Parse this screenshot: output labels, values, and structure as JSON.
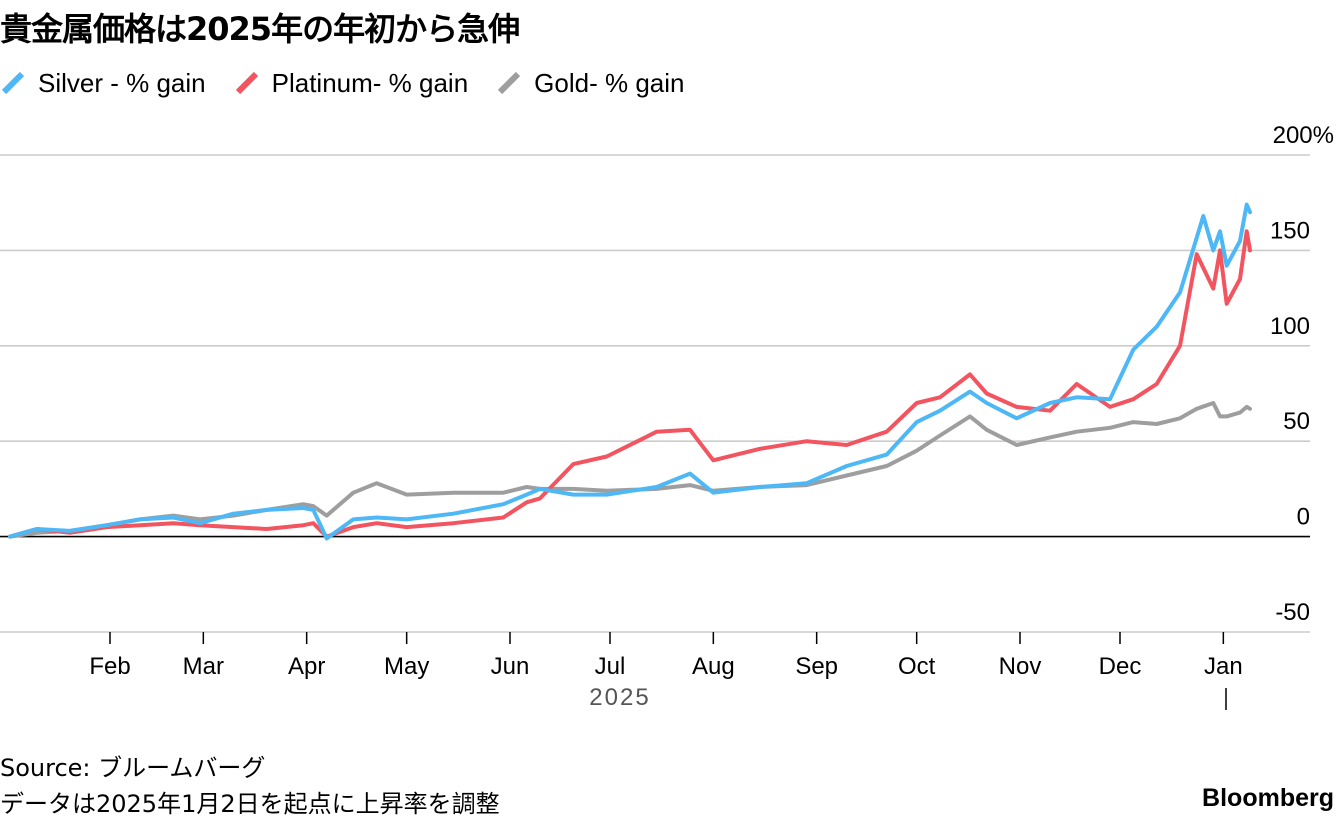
{
  "header": {
    "title": "貴金属価格は2025年の年初から急伸"
  },
  "footer": {
    "source": "Source: ブルームバーグ",
    "note": "データは2025年1月2日を起点に上昇率を調整",
    "brand": "Bloomberg"
  },
  "colors": {
    "silver": "#4db8f5",
    "platinum": "#f2555f",
    "gold": "#9e9e9e",
    "grid": "#cccccc",
    "zero_line": "#000000"
  },
  "chart_data": {
    "type": "line",
    "title": "貴金属価格は2025年の年初から急伸",
    "ylim": [
      -50,
      200
    ],
    "y_ticks": [
      -50,
      0,
      50,
      100,
      150,
      200
    ],
    "y_tick_labels": [
      "-50",
      "0",
      "50",
      "100",
      "150",
      "200%"
    ],
    "x_range": [
      "2025-01-02",
      "2026-01-09"
    ],
    "x_ticks": [
      {
        "date": "2025-02-01",
        "label": "Feb"
      },
      {
        "date": "2025-03-01",
        "label": "Mar"
      },
      {
        "date": "2025-04-01",
        "label": "Apr"
      },
      {
        "date": "2025-05-01",
        "label": "May"
      },
      {
        "date": "2025-06-01",
        "label": "Jun"
      },
      {
        "date": "2025-07-01",
        "label": "Jul"
      },
      {
        "date": "2025-08-01",
        "label": "Aug"
      },
      {
        "date": "2025-09-01",
        "label": "Sep"
      },
      {
        "date": "2025-10-01",
        "label": "Oct"
      },
      {
        "date": "2025-11-01",
        "label": "Nov"
      },
      {
        "date": "2025-12-01",
        "label": "Dec"
      },
      {
        "date": "2026-01-01",
        "label": "Jan"
      }
    ],
    "year_label": "2025",
    "legend_position": "top-left",
    "grid": true,
    "series": [
      {
        "name": "Silver - % gain",
        "color": "#4db8f5",
        "x": [
          "2025-01-02",
          "2025-01-10",
          "2025-01-20",
          "2025-01-31",
          "2025-02-10",
          "2025-02-20",
          "2025-02-28",
          "2025-03-10",
          "2025-03-20",
          "2025-03-31",
          "2025-04-03",
          "2025-04-07",
          "2025-04-15",
          "2025-04-22",
          "2025-05-01",
          "2025-05-15",
          "2025-05-30",
          "2025-06-06",
          "2025-06-10",
          "2025-06-20",
          "2025-06-30",
          "2025-07-15",
          "2025-07-25",
          "2025-08-01",
          "2025-08-15",
          "2025-08-29",
          "2025-09-10",
          "2025-09-22",
          "2025-10-01",
          "2025-10-08",
          "2025-10-17",
          "2025-10-22",
          "2025-10-31",
          "2025-11-10",
          "2025-11-18",
          "2025-11-28",
          "2025-12-05",
          "2025-12-12",
          "2025-12-19",
          "2025-12-26",
          "2025-12-29",
          "2025-12-31",
          "2026-01-02",
          "2026-01-06",
          "2026-01-08",
          "2026-01-09"
        ],
        "values": [
          0,
          4,
          3,
          6,
          9,
          10,
          7,
          12,
          14,
          15,
          14,
          -1,
          9,
          10,
          9,
          12,
          17,
          22,
          25,
          22,
          22,
          26,
          33,
          23,
          26,
          28,
          37,
          43,
          60,
          66,
          76,
          70,
          62,
          70,
          73,
          72,
          98,
          110,
          128,
          168,
          150,
          160,
          142,
          155,
          174,
          170
        ]
      },
      {
        "name": "Platinum- % gain",
        "color": "#f2555f",
        "x": [
          "2025-01-02",
          "2025-01-10",
          "2025-01-20",
          "2025-01-31",
          "2025-02-10",
          "2025-02-20",
          "2025-02-28",
          "2025-03-10",
          "2025-03-20",
          "2025-03-31",
          "2025-04-03",
          "2025-04-07",
          "2025-04-15",
          "2025-04-22",
          "2025-05-01",
          "2025-05-15",
          "2025-05-30",
          "2025-06-06",
          "2025-06-10",
          "2025-06-20",
          "2025-06-30",
          "2025-07-15",
          "2025-07-25",
          "2025-08-01",
          "2025-08-15",
          "2025-08-29",
          "2025-09-10",
          "2025-09-22",
          "2025-10-01",
          "2025-10-08",
          "2025-10-17",
          "2025-10-22",
          "2025-10-31",
          "2025-11-10",
          "2025-11-18",
          "2025-11-28",
          "2025-12-05",
          "2025-12-12",
          "2025-12-19",
          "2025-12-24",
          "2025-12-29",
          "2025-12-31",
          "2026-01-02",
          "2026-01-06",
          "2026-01-08",
          "2026-01-09"
        ],
        "values": [
          0,
          4,
          2,
          5,
          6,
          7,
          6,
          5,
          4,
          6,
          7,
          0,
          5,
          7,
          5,
          7,
          10,
          18,
          20,
          38,
          42,
          55,
          56,
          40,
          46,
          50,
          48,
          55,
          70,
          73,
          85,
          75,
          68,
          66,
          80,
          68,
          72,
          80,
          100,
          148,
          130,
          150,
          122,
          135,
          160,
          150
        ]
      },
      {
        "name": "Gold- % gain",
        "color": "#9e9e9e",
        "x": [
          "2025-01-02",
          "2025-01-10",
          "2025-01-20",
          "2025-01-31",
          "2025-02-10",
          "2025-02-20",
          "2025-02-28",
          "2025-03-10",
          "2025-03-20",
          "2025-03-31",
          "2025-04-03",
          "2025-04-07",
          "2025-04-15",
          "2025-04-22",
          "2025-05-01",
          "2025-05-15",
          "2025-05-30",
          "2025-06-06",
          "2025-06-10",
          "2025-06-20",
          "2025-06-30",
          "2025-07-15",
          "2025-07-25",
          "2025-08-01",
          "2025-08-15",
          "2025-08-29",
          "2025-09-10",
          "2025-09-22",
          "2025-10-01",
          "2025-10-08",
          "2025-10-17",
          "2025-10-22",
          "2025-10-31",
          "2025-11-10",
          "2025-11-18",
          "2025-11-28",
          "2025-12-05",
          "2025-12-12",
          "2025-12-19",
          "2025-12-24",
          "2025-12-29",
          "2025-12-31",
          "2026-01-02",
          "2026-01-06",
          "2026-01-08",
          "2026-01-09"
        ],
        "values": [
          0,
          2,
          3,
          6,
          9,
          11,
          9,
          11,
          14,
          17,
          16,
          11,
          23,
          28,
          22,
          23,
          23,
          26,
          25,
          25,
          24,
          25,
          27,
          24,
          26,
          27,
          32,
          37,
          45,
          53,
          63,
          56,
          48,
          52,
          55,
          57,
          60,
          59,
          62,
          67,
          70,
          63,
          63,
          65,
          68,
          67
        ]
      }
    ]
  }
}
